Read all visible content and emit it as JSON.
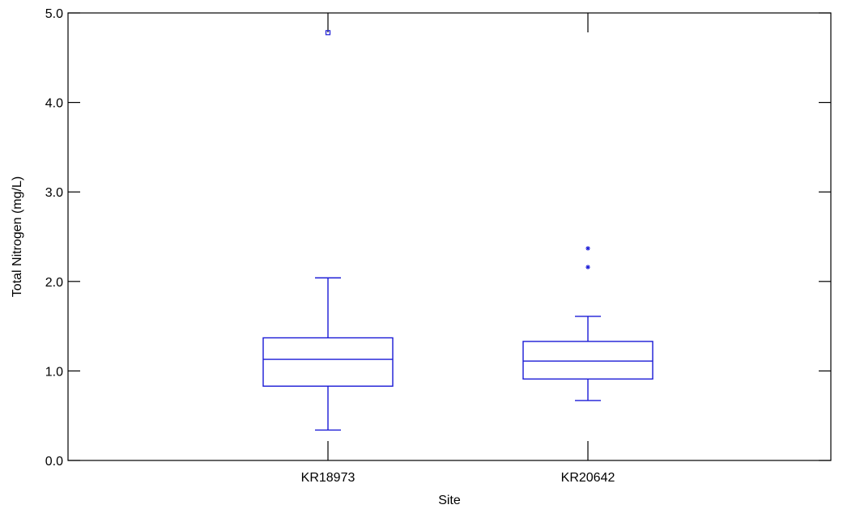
{
  "chart_data": {
    "type": "box",
    "xlabel": "Site",
    "ylabel": "Total Nitrogen (mg/L)",
    "ylim": [
      0,
      5
    ],
    "yticks": [
      0,
      1,
      2,
      3,
      4,
      5
    ],
    "ytick_labels": [
      "0.0",
      "1.0",
      "2.0",
      "3.0",
      "4.0",
      "5.0"
    ],
    "grid": false,
    "categories": [
      "KR18973",
      "KR20642"
    ],
    "series": [
      {
        "category": "KR18973",
        "whisker_low": 0.34,
        "q1": 0.83,
        "median": 1.13,
        "q3": 1.37,
        "whisker_high": 2.04,
        "outliers": [
          {
            "value": 4.78,
            "marker": "square"
          }
        ]
      },
      {
        "category": "KR20642",
        "whisker_low": 0.67,
        "q1": 0.91,
        "median": 1.11,
        "q3": 1.33,
        "whisker_high": 1.61,
        "outliers": [
          {
            "value": 2.37,
            "marker": "asterisk"
          },
          {
            "value": 2.16,
            "marker": "asterisk"
          }
        ]
      }
    ],
    "colors": {
      "box": "#1a1ad6",
      "axis": "#000000"
    }
  }
}
